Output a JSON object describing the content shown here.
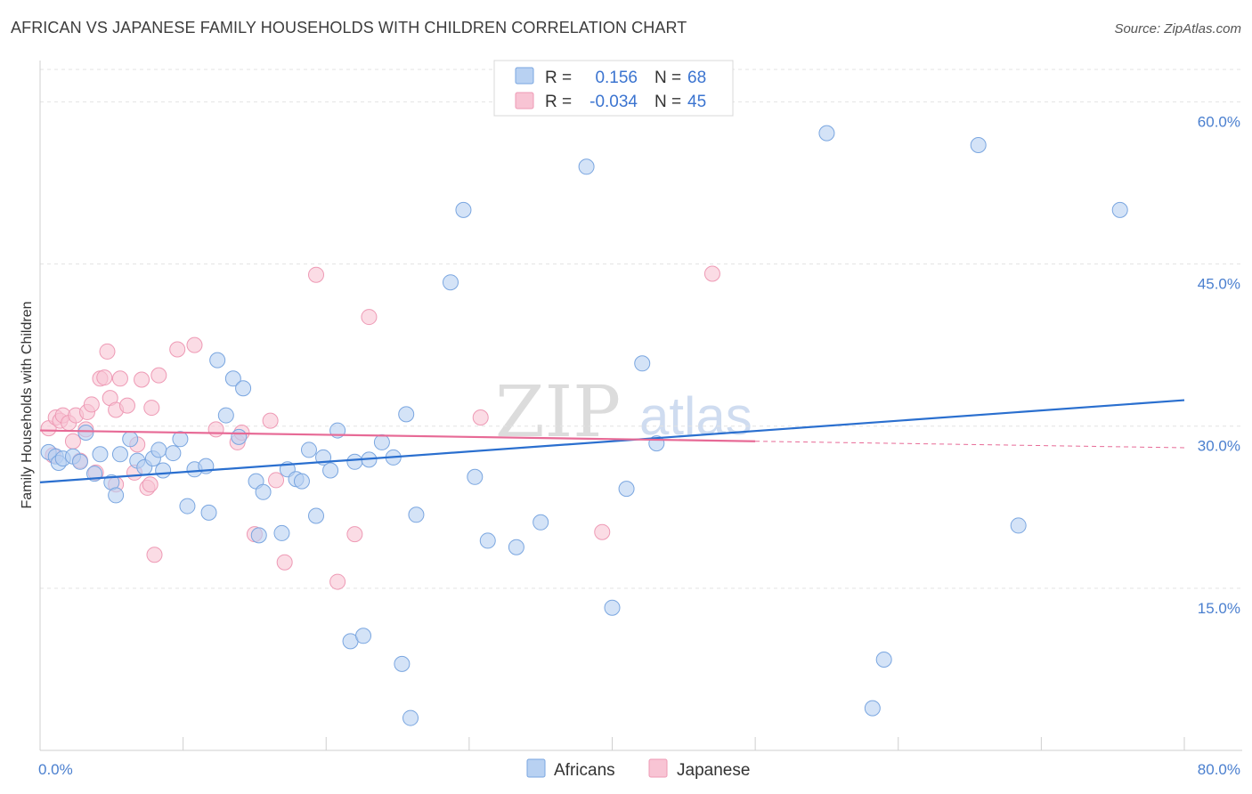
{
  "title": "AFRICAN VS JAPANESE FAMILY HOUSEHOLDS WITH CHILDREN CORRELATION CHART",
  "source": "Source: ZipAtlas.com",
  "colors": {
    "africans_fill": "#b8d1f2",
    "africans_stroke": "#7aa6e0",
    "africans_line": "#2a6fcf",
    "japanese_fill": "#f8c4d4",
    "japanese_stroke": "#ee9ab5",
    "japanese_line": "#e76a96",
    "tick": "#4a7fcf",
    "grid": "#e3e3e3"
  },
  "legend": {
    "r_label": "R =",
    "n_label": "N =",
    "africans_r": "0.156",
    "africans_n": "68",
    "japanese_r": "-0.034",
    "japanese_n": "45"
  },
  "bottom_legend": {
    "africans": "Africans",
    "japanese": "Japanese"
  },
  "watermark": {
    "zip": "ZIP",
    "atlas": "atlas"
  },
  "chart_data": {
    "type": "scatter",
    "title": "AFRICAN VS JAPANESE FAMILY HOUSEHOLDS WITH CHILDREN CORRELATION CHART",
    "xlabel": "",
    "ylabel": "Family Households with Children",
    "xlim": [
      0,
      80
    ],
    "ylim": [
      0,
      63
    ],
    "x_tick_labels": {
      "left": "0.0%",
      "right": "80.0%"
    },
    "y_ticks": [
      15,
      30,
      45,
      60
    ],
    "y_tick_labels": [
      "15.0%",
      "30.0%",
      "45.0%",
      "60.0%"
    ],
    "series": [
      {
        "name": "Africans",
        "R": 0.156,
        "N": 68,
        "trend": {
          "x": [
            0,
            80
          ],
          "y": [
            24.8,
            32.4
          ]
        },
        "points": [
          [
            0.6,
            27.6
          ],
          [
            1.1,
            27.2
          ],
          [
            1.3,
            26.6
          ],
          [
            1.6,
            27.0
          ],
          [
            2.3,
            27.2
          ],
          [
            2.8,
            26.7
          ],
          [
            3.2,
            29.4
          ],
          [
            3.8,
            25.6
          ],
          [
            4.2,
            27.4
          ],
          [
            5.0,
            24.8
          ],
          [
            5.3,
            23.6
          ],
          [
            5.6,
            27.4
          ],
          [
            6.3,
            28.8
          ],
          [
            6.8,
            26.8
          ],
          [
            7.3,
            26.2
          ],
          [
            7.9,
            27.0
          ],
          [
            8.3,
            27.8
          ],
          [
            8.6,
            25.9
          ],
          [
            9.3,
            27.5
          ],
          [
            9.8,
            28.8
          ],
          [
            10.3,
            22.6
          ],
          [
            10.8,
            26.0
          ],
          [
            11.6,
            26.3
          ],
          [
            11.8,
            22.0
          ],
          [
            12.4,
            36.1
          ],
          [
            13.0,
            31.0
          ],
          [
            13.5,
            34.4
          ],
          [
            13.9,
            29.0
          ],
          [
            14.2,
            33.5
          ],
          [
            15.1,
            24.9
          ],
          [
            15.3,
            19.9
          ],
          [
            15.6,
            23.9
          ],
          [
            16.9,
            20.1
          ],
          [
            17.3,
            26.0
          ],
          [
            17.9,
            25.1
          ],
          [
            18.3,
            24.9
          ],
          [
            18.8,
            27.8
          ],
          [
            19.3,
            21.7
          ],
          [
            19.8,
            27.1
          ],
          [
            20.3,
            25.9
          ],
          [
            20.8,
            29.6
          ],
          [
            21.7,
            10.1
          ],
          [
            22.0,
            26.7
          ],
          [
            22.6,
            10.6
          ],
          [
            23.0,
            26.9
          ],
          [
            23.9,
            28.5
          ],
          [
            24.7,
            27.1
          ],
          [
            25.3,
            8.0
          ],
          [
            25.6,
            31.1
          ],
          [
            25.9,
            3.0
          ],
          [
            26.3,
            21.8
          ],
          [
            28.7,
            43.3
          ],
          [
            29.6,
            50.0
          ],
          [
            30.4,
            25.3
          ],
          [
            31.3,
            19.4
          ],
          [
            33.3,
            18.8
          ],
          [
            35.0,
            21.1
          ],
          [
            38.2,
            54.0
          ],
          [
            40.0,
            13.2
          ],
          [
            41.0,
            24.2
          ],
          [
            42.1,
            35.8
          ],
          [
            43.1,
            28.4
          ],
          [
            55.0,
            57.1
          ],
          [
            58.2,
            3.9
          ],
          [
            59.0,
            8.4
          ],
          [
            65.6,
            56.0
          ],
          [
            68.4,
            20.8
          ],
          [
            75.5,
            50.0
          ]
        ]
      },
      {
        "name": "Japanese",
        "R": -0.034,
        "N": 45,
        "trend": {
          "x": [
            0,
            50
          ],
          "y": [
            29.6,
            28.6
          ]
        },
        "trend_dashed": {
          "x": [
            50,
            80
          ],
          "y": [
            28.6,
            28.0
          ]
        },
        "points": [
          [
            0.6,
            29.8
          ],
          [
            0.9,
            27.3
          ],
          [
            1.1,
            30.8
          ],
          [
            1.4,
            30.5
          ],
          [
            1.6,
            31.0
          ],
          [
            2.0,
            30.3
          ],
          [
            2.3,
            28.6
          ],
          [
            2.5,
            31.0
          ],
          [
            2.8,
            26.8
          ],
          [
            3.2,
            29.7
          ],
          [
            3.3,
            31.3
          ],
          [
            3.6,
            32.0
          ],
          [
            3.9,
            25.7
          ],
          [
            4.2,
            34.4
          ],
          [
            4.5,
            34.5
          ],
          [
            4.7,
            36.9
          ],
          [
            4.9,
            32.6
          ],
          [
            5.3,
            31.5
          ],
          [
            5.3,
            24.6
          ],
          [
            5.6,
            34.4
          ],
          [
            6.1,
            31.9
          ],
          [
            6.6,
            25.7
          ],
          [
            6.8,
            28.3
          ],
          [
            7.1,
            34.3
          ],
          [
            7.5,
            24.3
          ],
          [
            7.7,
            24.6
          ],
          [
            7.8,
            31.7
          ],
          [
            8.0,
            18.1
          ],
          [
            8.3,
            34.7
          ],
          [
            9.6,
            37.1
          ],
          [
            10.8,
            37.5
          ],
          [
            12.3,
            29.7
          ],
          [
            13.8,
            28.5
          ],
          [
            14.1,
            29.4
          ],
          [
            15.0,
            20.0
          ],
          [
            16.1,
            30.5
          ],
          [
            16.5,
            25.0
          ],
          [
            17.1,
            17.4
          ],
          [
            19.3,
            44.0
          ],
          [
            20.8,
            15.6
          ],
          [
            22.0,
            20.0
          ],
          [
            23.0,
            40.1
          ],
          [
            30.8,
            30.8
          ],
          [
            39.3,
            20.2
          ],
          [
            47.0,
            44.1
          ]
        ]
      }
    ]
  }
}
